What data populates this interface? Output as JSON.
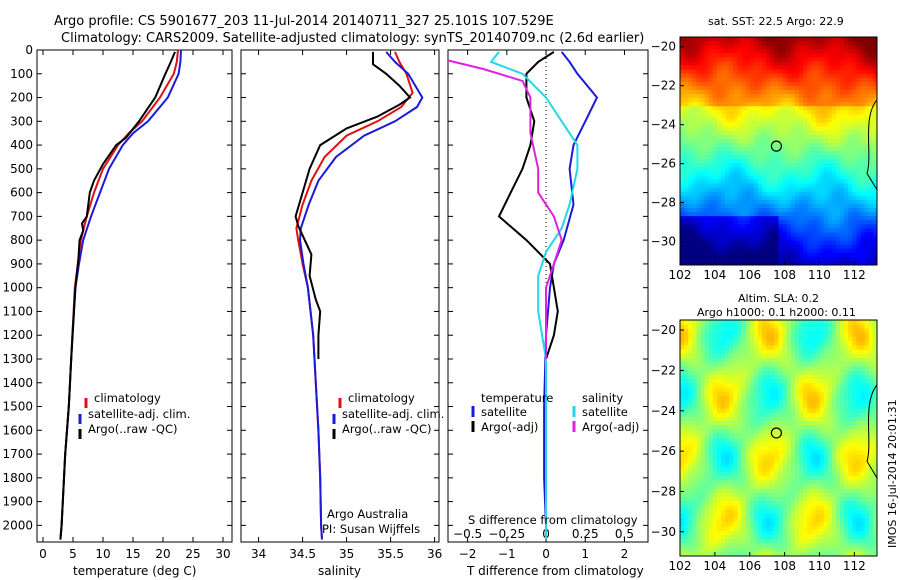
{
  "header": {
    "line1": "Argo profile: CS 5901677_203 11-Jul-2014 20140711_327 25.101S 107.529E",
    "line2": "Climatology: CARS2009. Satellite-adjusted climatology: synTS_20140709.nc (2.6d earlier)"
  },
  "colors": {
    "climatology": "#e01010",
    "satellite": "#1a1ad8",
    "argo": "#000000",
    "s_satellite": "#20d8e8",
    "s_argo": "#e020e0"
  },
  "chart_data": [
    {
      "type": "line",
      "panel": "temperature",
      "xlabel": "temperature (deg C)",
      "xlim": [
        -1,
        31.5
      ],
      "xticks": [
        "0",
        "5",
        "10",
        "15",
        "20",
        "25",
        "30"
      ],
      "ylim": [
        2070,
        0
      ],
      "yticks": [
        "0",
        "100",
        "200",
        "300",
        "400",
        "500",
        "600",
        "700",
        "800",
        "900",
        "1000",
        "1100",
        "1200",
        "1300",
        "1400",
        "1500",
        "1600",
        "1700",
        "1800",
        "1900",
        "2000"
      ],
      "legend": [
        "climatology",
        "satellite-adj. clim.",
        "Argo(..raw -QC)"
      ],
      "series": [
        {
          "name": "climatology",
          "points": [
            [
              22.5,
              0
            ],
            [
              22.3,
              50
            ],
            [
              21.8,
              100
            ],
            [
              19.5,
              200
            ],
            [
              16.5,
              300
            ],
            [
              14.3,
              350
            ],
            [
              12.5,
              400
            ],
            [
              10.0,
              500
            ],
            [
              8.5,
              600
            ],
            [
              7.3,
              700
            ],
            [
              6.3,
              800
            ],
            [
              5.8,
              900
            ],
            [
              5.3,
              1000
            ],
            [
              4.9,
              1200
            ],
            [
              4.3,
              1500
            ],
            [
              3.7,
              1700
            ],
            [
              3.1,
              2000
            ],
            [
              2.9,
              2060
            ]
          ]
        },
        {
          "name": "satellite-adj. clim.",
          "points": [
            [
              23.0,
              0
            ],
            [
              22.9,
              50
            ],
            [
              22.6,
              100
            ],
            [
              20.8,
              200
            ],
            [
              17.5,
              300
            ],
            [
              15.0,
              350
            ],
            [
              13.3,
              400
            ],
            [
              11.0,
              500
            ],
            [
              9.5,
              600
            ],
            [
              8.0,
              700
            ],
            [
              6.7,
              800
            ],
            [
              6.0,
              900
            ],
            [
              5.4,
              1000
            ],
            [
              4.9,
              1200
            ],
            [
              4.3,
              1500
            ],
            [
              3.7,
              1700
            ],
            [
              3.1,
              2000
            ],
            [
              2.9,
              2060
            ]
          ]
        },
        {
          "name": "Argo(..raw -QC)",
          "points": [
            [
              22.0,
              8
            ],
            [
              21.3,
              50
            ],
            [
              20.4,
              100
            ],
            [
              18.7,
              200
            ],
            [
              16.0,
              300
            ],
            [
              13.8,
              370
            ],
            [
              12.2,
              400
            ],
            [
              10.0,
              480
            ],
            [
              8.5,
              550
            ],
            [
              7.8,
              600
            ],
            [
              7.3,
              700
            ],
            [
              6.5,
              730
            ],
            [
              6.7,
              760
            ],
            [
              6.1,
              800
            ],
            [
              5.9,
              880
            ],
            [
              5.4,
              1000
            ],
            [
              5.1,
              1130
            ],
            [
              4.7,
              1300
            ],
            [
              4.3,
              1500
            ],
            [
              3.7,
              1700
            ],
            [
              3.1,
              2000
            ],
            [
              2.9,
              2060
            ]
          ]
        }
      ]
    },
    {
      "type": "line",
      "panel": "salinity",
      "xlabel": "salinity",
      "xlim": [
        33.8,
        36.05
      ],
      "xticks": [
        "34",
        "34.5",
        "35",
        "35.5",
        "36"
      ],
      "ylim": [
        2070,
        0
      ],
      "legend": [
        "climatology",
        "satellite-adj. clim.",
        "Argo(..raw -QC)"
      ],
      "annotation": [
        "Argo Australia",
        "PI: Susan Wijffels"
      ],
      "series": [
        {
          "name": "climatology",
          "points": [
            [
              35.55,
              8
            ],
            [
              35.6,
              50
            ],
            [
              35.68,
              100
            ],
            [
              35.75,
              180
            ],
            [
              35.62,
              240
            ],
            [
              35.35,
              300
            ],
            [
              35.0,
              360
            ],
            [
              34.75,
              450
            ],
            [
              34.6,
              550
            ],
            [
              34.5,
              650
            ],
            [
              34.43,
              750
            ],
            [
              34.45,
              800
            ],
            [
              34.5,
              900
            ],
            [
              34.56,
              1000
            ],
            [
              34.62,
              1200
            ],
            [
              34.65,
              1400
            ],
            [
              34.68,
              1600
            ],
            [
              34.7,
              1800
            ],
            [
              34.71,
              2000
            ],
            [
              34.72,
              2060
            ]
          ]
        },
        {
          "name": "satellite-adj. clim.",
          "points": [
            [
              35.45,
              8
            ],
            [
              35.55,
              50
            ],
            [
              35.7,
              100
            ],
            [
              35.86,
              200
            ],
            [
              35.8,
              240
            ],
            [
              35.55,
              300
            ],
            [
              35.2,
              360
            ],
            [
              34.88,
              450
            ],
            [
              34.68,
              550
            ],
            [
              34.57,
              650
            ],
            [
              34.48,
              750
            ],
            [
              34.47,
              800
            ],
            [
              34.51,
              900
            ],
            [
              34.56,
              1000
            ],
            [
              34.62,
              1200
            ],
            [
              34.65,
              1400
            ],
            [
              34.68,
              1600
            ],
            [
              34.7,
              1800
            ],
            [
              34.71,
              2000
            ],
            [
              34.72,
              2060
            ]
          ]
        },
        {
          "name": "Argo(..raw -QC)",
          "points": [
            [
              35.3,
              8
            ],
            [
              35.3,
              60
            ],
            [
              35.45,
              100
            ],
            [
              35.6,
              150
            ],
            [
              35.72,
              200
            ],
            [
              35.6,
              230
            ],
            [
              35.35,
              280
            ],
            [
              35.0,
              330
            ],
            [
              34.7,
              400
            ],
            [
              34.58,
              500
            ],
            [
              34.5,
              600
            ],
            [
              34.42,
              700
            ],
            [
              34.45,
              740
            ],
            [
              34.5,
              780
            ],
            [
              34.6,
              860
            ],
            [
              34.58,
              950
            ],
            [
              34.65,
              1050
            ],
            [
              34.7,
              1100
            ],
            [
              34.68,
              1200
            ],
            [
              34.68,
              1300
            ]
          ]
        }
      ]
    },
    {
      "type": "line",
      "panel": "difference",
      "xlabel": "T difference from climatology",
      "xlabel_top": "S difference from climatology",
      "xlim": [
        -2.5,
        2.6
      ],
      "xticks": [
        "-2",
        "-1",
        "0",
        "1",
        "2"
      ],
      "sticks": [
        "-0.5",
        "-0.25",
        "0",
        "0.25",
        "0.5"
      ],
      "legend_t_title": "temperature",
      "legend_s_title": "salinity",
      "legend_t": [
        "satellite",
        "Argo(-adj)"
      ],
      "legend_s": [
        "satellite",
        "Argo(-adj)"
      ],
      "series": [
        {
          "name": "T satellite",
          "points": [
            [
              0.4,
              8
            ],
            [
              0.6,
              50
            ],
            [
              0.8,
              100
            ],
            [
              1.3,
              200
            ],
            [
              1.0,
              300
            ],
            [
              0.7,
              400
            ],
            [
              0.6,
              500
            ],
            [
              0.7,
              650
            ],
            [
              0.45,
              800
            ],
            [
              0.2,
              900
            ],
            [
              0.1,
              1000
            ],
            [
              0.0,
              1200
            ],
            [
              -0.05,
              1500
            ],
            [
              -0.05,
              1800
            ],
            [
              0.0,
              2000
            ],
            [
              0.0,
              2060
            ]
          ]
        },
        {
          "name": "T Argo(-adj)",
          "points": [
            [
              0.2,
              8
            ],
            [
              -0.2,
              50
            ],
            [
              -0.5,
              100
            ],
            [
              -0.5,
              200
            ],
            [
              -0.3,
              300
            ],
            [
              -0.4,
              400
            ],
            [
              -0.6,
              500
            ],
            [
              -0.9,
              600
            ],
            [
              -1.2,
              700
            ],
            [
              -0.5,
              800
            ],
            [
              0.1,
              900
            ],
            [
              0.2,
              1000
            ],
            [
              0.3,
              1100
            ],
            [
              0.2,
              1200
            ],
            [
              0.0,
              1300
            ],
            [
              0.0,
              1500
            ],
            [
              0.0,
              2000
            ],
            [
              0.0,
              2060
            ]
          ]
        },
        {
          "name": "S satellite",
          "points": [
            [
              -0.3,
              8
            ],
            [
              -0.35,
              50
            ],
            [
              -0.15,
              100
            ],
            [
              0.0,
              200
            ],
            [
              0.1,
              300
            ],
            [
              0.2,
              400
            ],
            [
              0.2,
              500
            ],
            [
              0.15,
              650
            ],
            [
              0.1,
              750
            ],
            [
              0.0,
              850
            ],
            [
              -0.05,
              950
            ],
            [
              -0.05,
              1100
            ],
            [
              0.0,
              1300
            ],
            [
              0.0,
              1600
            ],
            [
              0.0,
              2000
            ],
            [
              0.0,
              2060
            ]
          ]
        },
        {
          "name": "S Argo(-adj)",
          "points": [
            [
              -0.7,
              8
            ],
            [
              -0.65,
              40
            ],
            [
              -0.4,
              80
            ],
            [
              -0.15,
              130
            ],
            [
              -0.1,
              200
            ],
            [
              -0.1,
              350
            ],
            [
              -0.05,
              500
            ],
            [
              -0.05,
              600
            ],
            [
              0.05,
              700
            ],
            [
              0.1,
              800
            ],
            [
              0.05,
              900
            ],
            [
              0.0,
              1000
            ],
            [
              0.0,
              1200
            ],
            [
              0.0,
              1300
            ]
          ]
        }
      ]
    },
    {
      "type": "heatmap",
      "panel": "sst_map",
      "title": "sat. SST: 22.5 Argo: 22.9",
      "xticks": [
        "102",
        "104",
        "106",
        "108",
        "110",
        "112"
      ],
      "yticks": [
        "-20",
        "-22",
        "-24",
        "-26",
        "-28",
        "-30"
      ],
      "xlim": [
        102,
        113.3
      ],
      "ylim": [
        -31.2,
        -19.5
      ],
      "marker": {
        "lon": 107.529,
        "lat": -25.101
      },
      "colormap": "jet"
    },
    {
      "type": "heatmap",
      "panel": "sla_map",
      "title_line1": "Altim. SLA: 0.2",
      "title_line2": "Argo h1000: 0.1 h2000: 0.11",
      "xticks": [
        "102",
        "104",
        "106",
        "108",
        "110",
        "112"
      ],
      "yticks": [
        "-20",
        "-22",
        "-24",
        "-26",
        "-28",
        "-30"
      ],
      "xlim": [
        102,
        113.3
      ],
      "ylim": [
        -31.2,
        -19.5
      ],
      "marker": {
        "lon": 107.529,
        "lat": -25.101
      },
      "colormap": "jet"
    }
  ],
  "stamp": "IMOS 16-Jul-2014 20:01:31"
}
